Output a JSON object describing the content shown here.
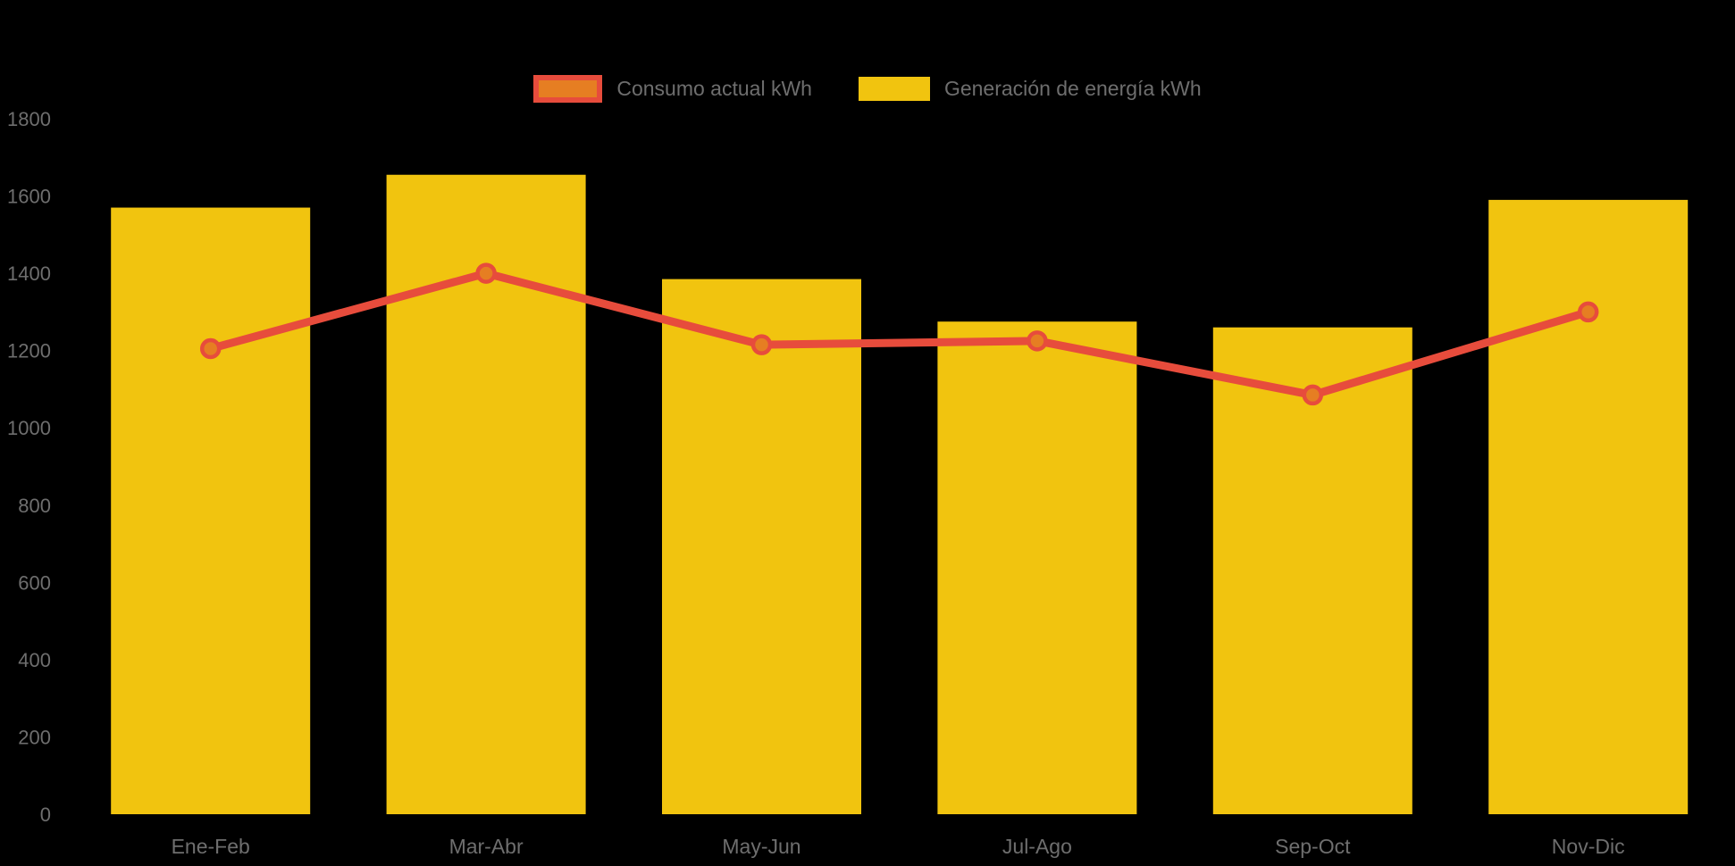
{
  "legend": {
    "position": "top-center"
  },
  "chart_data": {
    "type": "combo-bar-line",
    "title": "",
    "xlabel": "",
    "ylabel": "",
    "categories": [
      "Ene-Feb",
      "Mar-Abr",
      "May-Jun",
      "Jul-Ago",
      "Sep-Oct",
      "Nov-Dic"
    ],
    "series": [
      {
        "name": "Consumo actual kWh",
        "type": "line",
        "color": "#E74C3C",
        "marker_fill": "#E67E22",
        "values": [
          1205,
          1400,
          1215,
          1225,
          1085,
          1300
        ]
      },
      {
        "name": "Generación de energía kWh",
        "type": "bar",
        "color": "#F1C40F",
        "values": [
          1570,
          1655,
          1385,
          1275,
          1260,
          1590
        ]
      }
    ],
    "ylim": [
      0,
      1800
    ],
    "yticks": [
      0,
      200,
      400,
      600,
      800,
      1000,
      1200,
      1400,
      1600,
      1800
    ],
    "grid": false,
    "legend_position": "top-center",
    "background_color": "#000000",
    "text_color": "#6E6E6E"
  }
}
